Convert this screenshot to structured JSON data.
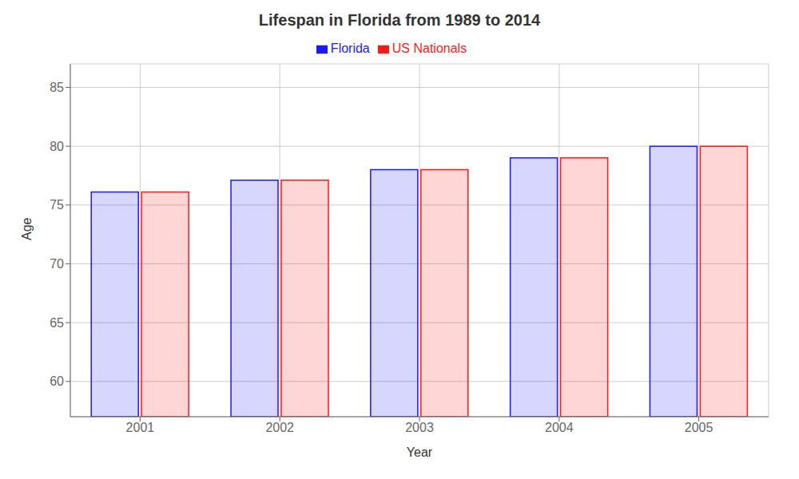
{
  "chart_data": {
    "type": "bar",
    "title": "Lifespan in Florida from 1989 to 2014",
    "x_label": "Year",
    "y_label": "Age",
    "categories": [
      "2001",
      "2002",
      "2003",
      "2004",
      "2005"
    ],
    "series": [
      {
        "name": "Florida",
        "color": "#1a1aff",
        "values": [
          76.1,
          77.1,
          78.0,
          79.0,
          80.0
        ]
      },
      {
        "name": "US Nationals",
        "color": "#ff1a1a",
        "values": [
          76.1,
          77.1,
          78.0,
          79.0,
          80.0
        ]
      }
    ],
    "ylim": [
      57,
      87
    ],
    "yticks": [
      60,
      65,
      70,
      75,
      80,
      85
    ],
    "grid": true,
    "legend": "top"
  }
}
